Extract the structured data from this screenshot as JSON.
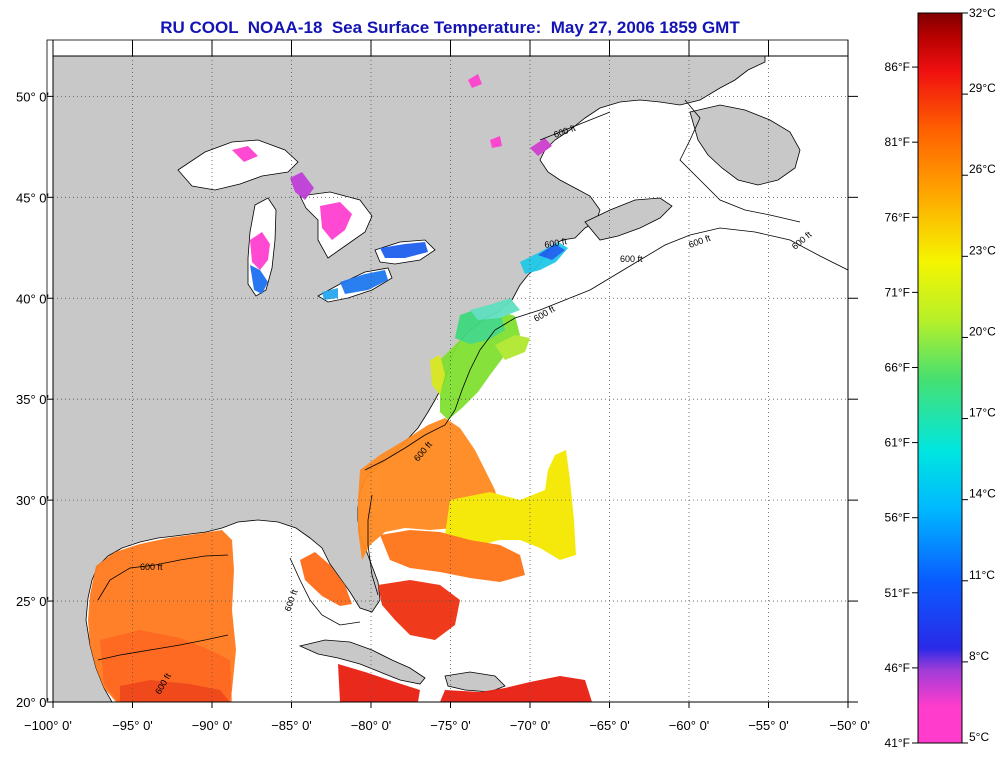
{
  "title": "RU COOL  NOAA-18  Sea Surface Temperature:  May 27, 2006 1859 GMT",
  "map": {
    "lon_range": [
      -100,
      -50
    ],
    "lat_range": [
      20,
      52
    ],
    "lon_ticks": [
      {
        "value": -100,
        "label": "−100° 0'"
      },
      {
        "value": -95,
        "label": "−95° 0'"
      },
      {
        "value": -90,
        "label": "−90° 0'"
      },
      {
        "value": -85,
        "label": "−85° 0'"
      },
      {
        "value": -80,
        "label": "−80° 0'"
      },
      {
        "value": -75,
        "label": "−75° 0'"
      },
      {
        "value": -70,
        "label": "−70° 0'"
      },
      {
        "value": -65,
        "label": "−65° 0'"
      },
      {
        "value": -60,
        "label": "−60° 0'"
      },
      {
        "value": -55,
        "label": "−55° 0'"
      },
      {
        "value": -50,
        "label": "−50° 0'"
      }
    ],
    "lat_ticks": [
      {
        "value": 20,
        "label": "20° 0'"
      },
      {
        "value": 25,
        "label": "25° 0'"
      },
      {
        "value": 30,
        "label": "30° 0'"
      },
      {
        "value": 35,
        "label": "35° 0'"
      },
      {
        "value": 40,
        "label": "40° 0'"
      },
      {
        "value": 45,
        "label": "45° 0'"
      },
      {
        "value": 50,
        "label": "50° 0'"
      }
    ],
    "contour_label": "600 ft",
    "land_color": "#c8c8c8",
    "ocean_color": "#ffffff"
  },
  "colorbar": {
    "celsius_ticks": [
      {
        "value": 5,
        "label": "5°C"
      },
      {
        "value": 8,
        "label": "8°C"
      },
      {
        "value": 11,
        "label": "11°C"
      },
      {
        "value": 14,
        "label": "14°C"
      },
      {
        "value": 17,
        "label": "17°C"
      },
      {
        "value": 20,
        "label": "20°C"
      },
      {
        "value": 23,
        "label": "23°C"
      },
      {
        "value": 26,
        "label": "26°C"
      },
      {
        "value": 29,
        "label": "29°C"
      },
      {
        "value": 32,
        "label": "32°C"
      }
    ],
    "fahrenheit_ticks": [
      {
        "value": 41,
        "label": "41°F"
      },
      {
        "value": 46,
        "label": "46°F"
      },
      {
        "value": 51,
        "label": "51°F"
      },
      {
        "value": 56,
        "label": "56°F"
      },
      {
        "value": 61,
        "label": "61°F"
      },
      {
        "value": 66,
        "label": "66°F"
      },
      {
        "value": 71,
        "label": "71°F"
      },
      {
        "value": 76,
        "label": "76°F"
      },
      {
        "value": 81,
        "label": "81°F"
      },
      {
        "value": 86,
        "label": "86°F"
      }
    ],
    "range_c": [
      5,
      32
    ],
    "color_stops": [
      "#ff3ccc",
      "#a03cd8",
      "#2a2ae8",
      "#0a5aff",
      "#00b8ff",
      "#00e6e0",
      "#48e070",
      "#b8f028",
      "#f5f500",
      "#ffa000",
      "#ff6000",
      "#f01010",
      "#b40000",
      "#800000"
    ]
  }
}
